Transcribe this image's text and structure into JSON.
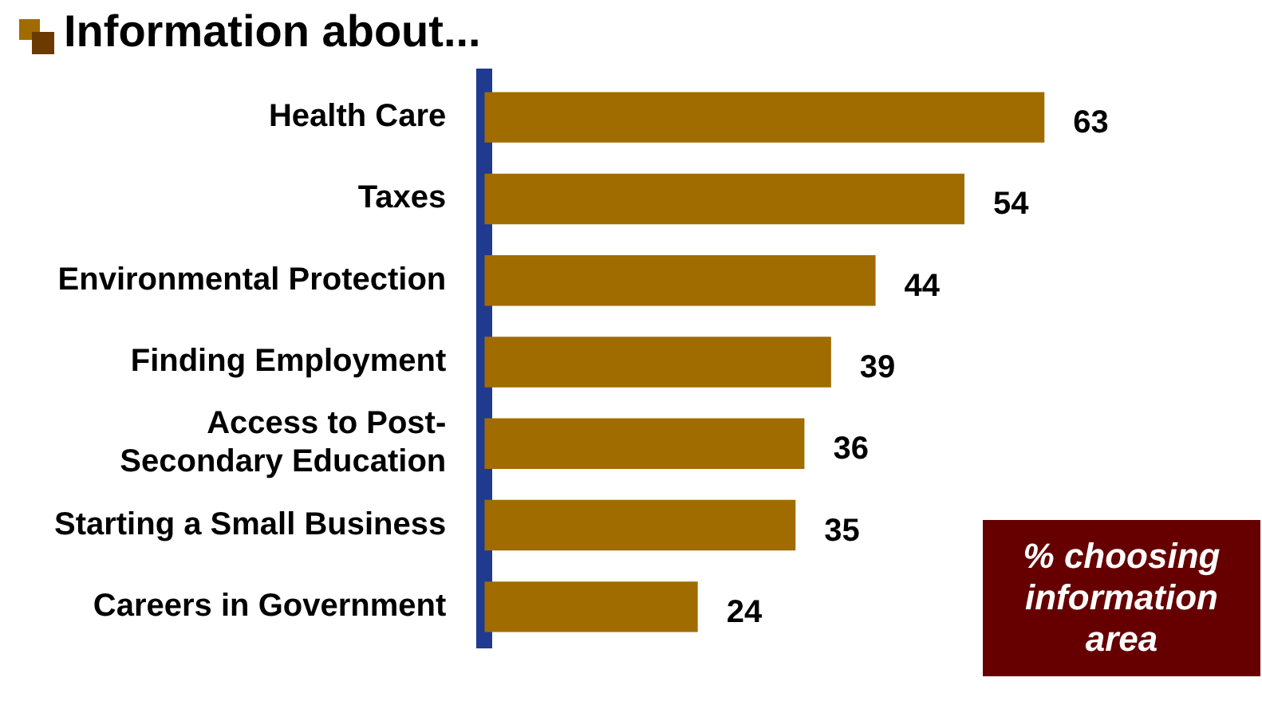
{
  "chart_data": {
    "type": "bar",
    "orientation": "horizontal",
    "title": "Information about...",
    "categories": [
      "Health Care",
      "Taxes",
      "Environmental Protection",
      "Finding Employment",
      "Access to Post-Secondary Education",
      "Starting a Small Business",
      "Careers in Government"
    ],
    "values": [
      63,
      54,
      44,
      39,
      36,
      35,
      24
    ],
    "color": "#a06c00",
    "data_labels": true,
    "legend": false,
    "annotations": [
      "% choosing information area"
    ]
  }
}
